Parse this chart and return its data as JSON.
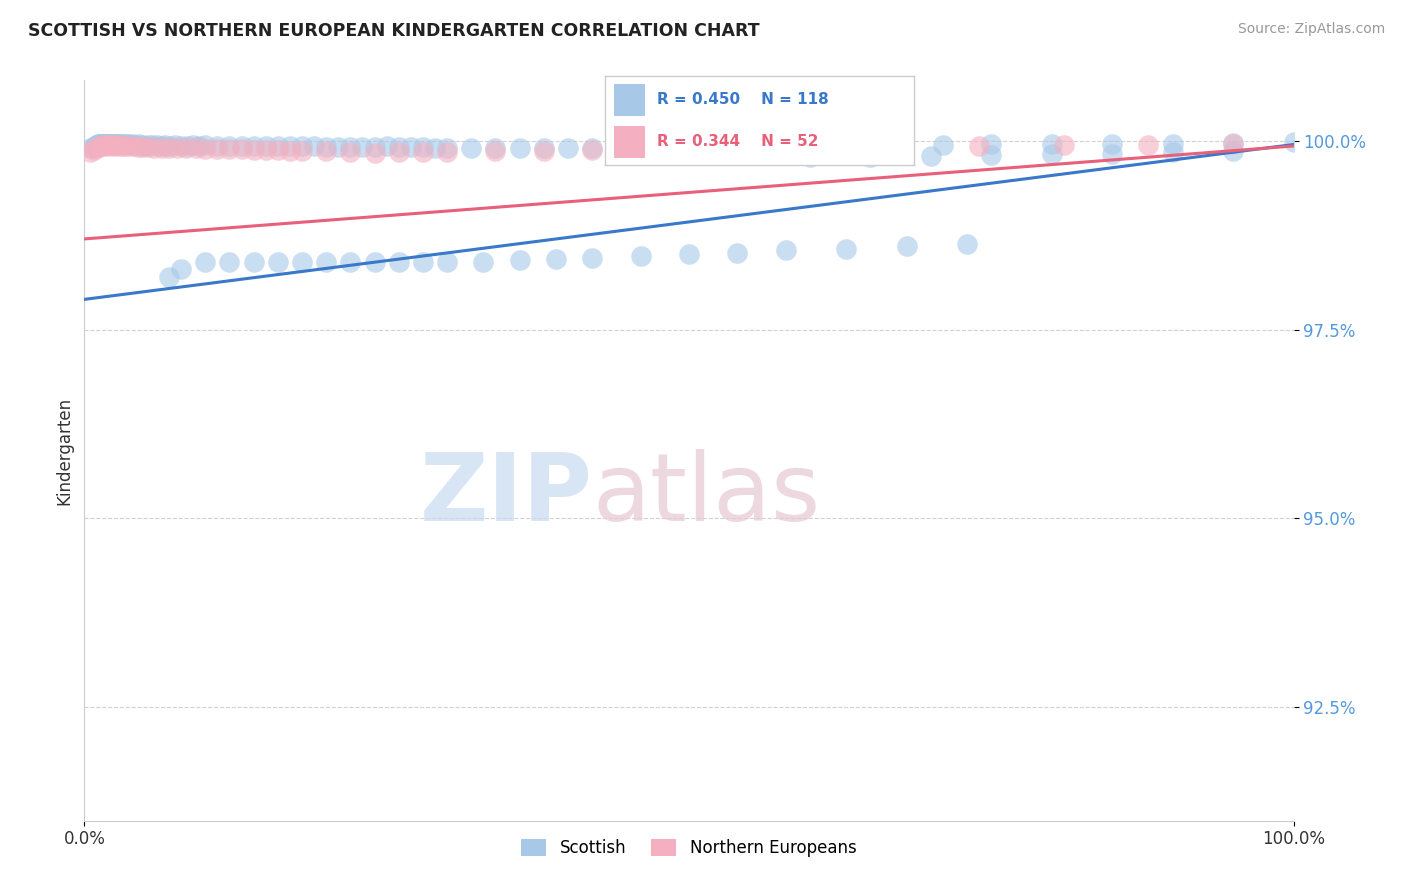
{
  "title": "SCOTTISH VS NORTHERN EUROPEAN KINDERGARTEN CORRELATION CHART",
  "source": "Source: ZipAtlas.com",
  "ylabel": "Kindergarten",
  "xlim": [
    0.0,
    1.0
  ],
  "ylim": [
    0.91,
    1.008
  ],
  "yticks": [
    0.925,
    0.95,
    0.975,
    1.0
  ],
  "ytick_labels": [
    "92.5%",
    "95.0%",
    "97.5%",
    "100.0%"
  ],
  "xticks": [
    0.0,
    1.0
  ],
  "xtick_labels": [
    "0.0%",
    "100.0%"
  ],
  "blue_R": 0.45,
  "blue_N": 118,
  "pink_R": 0.344,
  "pink_N": 52,
  "blue_color": "#a8c8e8",
  "pink_color": "#f4b0c0",
  "blue_line_color": "#3a78c9",
  "pink_line_color": "#e8607a",
  "grid_color": "#cccccc",
  "background_color": "#ffffff",
  "legend_label_blue": "Scottish",
  "legend_label_pink": "Northern Europeans",
  "blue_trend_y0": 0.979,
  "blue_trend_y1": 0.9995,
  "pink_trend_y0": 0.987,
  "pink_trend_y1": 0.9993,
  "blue_x": [
    0.005,
    0.008,
    0.01,
    0.01,
    0.011,
    0.012,
    0.013,
    0.014,
    0.015,
    0.015,
    0.016,
    0.017,
    0.018,
    0.019,
    0.02,
    0.02,
    0.021,
    0.022,
    0.023,
    0.024,
    0.025,
    0.026,
    0.027,
    0.028,
    0.03,
    0.031,
    0.033,
    0.035,
    0.037,
    0.04,
    0.042,
    0.045,
    0.048,
    0.05,
    0.053,
    0.056,
    0.06,
    0.063,
    0.067,
    0.07,
    0.075,
    0.08,
    0.085,
    0.09,
    0.095,
    0.1,
    0.11,
    0.12,
    0.13,
    0.14,
    0.15,
    0.16,
    0.17,
    0.18,
    0.19,
    0.2,
    0.21,
    0.22,
    0.23,
    0.24,
    0.25,
    0.26,
    0.27,
    0.28,
    0.29,
    0.3,
    0.32,
    0.34,
    0.36,
    0.38,
    0.4,
    0.42,
    0.45,
    0.48,
    0.51,
    0.55,
    0.59,
    0.63,
    0.67,
    0.71,
    0.75,
    0.8,
    0.85,
    0.9,
    0.95,
    1.0,
    0.6,
    0.65,
    0.7,
    0.75,
    0.8,
    0.85,
    0.9,
    0.95,
    0.07,
    0.08,
    0.1,
    0.12,
    0.14,
    0.16,
    0.18,
    0.2,
    0.22,
    0.24,
    0.26,
    0.28,
    0.3,
    0.33,
    0.36,
    0.39,
    0.42,
    0.46,
    0.5,
    0.54,
    0.58,
    0.63,
    0.68,
    0.73
  ],
  "blue_y": [
    0.999,
    0.9992,
    0.9994,
    0.9993,
    0.9995,
    0.9996,
    0.9995,
    0.9995,
    0.9995,
    0.9996,
    0.9995,
    0.9996,
    0.9995,
    0.9996,
    0.9995,
    0.9996,
    0.9995,
    0.9996,
    0.9996,
    0.9995,
    0.9995,
    0.9996,
    0.9995,
    0.9996,
    0.9995,
    0.9996,
    0.9995,
    0.9995,
    0.9996,
    0.9995,
    0.9994,
    0.9995,
    0.9994,
    0.9993,
    0.9994,
    0.9994,
    0.9994,
    0.9993,
    0.9994,
    0.9993,
    0.9994,
    0.9993,
    0.9993,
    0.9994,
    0.9993,
    0.9994,
    0.9993,
    0.9993,
    0.9993,
    0.9993,
    0.9993,
    0.9993,
    0.9993,
    0.9993,
    0.9993,
    0.9992,
    0.9992,
    0.9992,
    0.9992,
    0.9992,
    0.9993,
    0.9992,
    0.9992,
    0.9992,
    0.9991,
    0.9991,
    0.9991,
    0.9991,
    0.9991,
    0.9991,
    0.9991,
    0.9991,
    0.9992,
    0.9992,
    0.9992,
    0.9993,
    0.9993,
    0.9993,
    0.9994,
    0.9994,
    0.9995,
    0.9995,
    0.9996,
    0.9996,
    0.9997,
    0.9998,
    0.9978,
    0.9979,
    0.998,
    0.9981,
    0.9982,
    0.9983,
    0.9985,
    0.9987,
    0.982,
    0.983,
    0.984,
    0.984,
    0.984,
    0.984,
    0.984,
    0.984,
    0.984,
    0.984,
    0.984,
    0.984,
    0.984,
    0.984,
    0.9842,
    0.9844,
    0.9845,
    0.9847,
    0.985,
    0.9852,
    0.9855,
    0.9857,
    0.986,
    0.9863
  ],
  "pink_x": [
    0.005,
    0.008,
    0.01,
    0.012,
    0.014,
    0.015,
    0.017,
    0.019,
    0.02,
    0.022,
    0.024,
    0.026,
    0.028,
    0.03,
    0.033,
    0.036,
    0.04,
    0.044,
    0.048,
    0.053,
    0.058,
    0.064,
    0.07,
    0.077,
    0.084,
    0.092,
    0.1,
    0.11,
    0.12,
    0.13,
    0.14,
    0.15,
    0.16,
    0.17,
    0.18,
    0.2,
    0.22,
    0.24,
    0.26,
    0.28,
    0.3,
    0.34,
    0.38,
    0.42,
    0.47,
    0.53,
    0.6,
    0.67,
    0.74,
    0.81,
    0.88,
    0.95
  ],
  "pink_y": [
    0.9985,
    0.9988,
    0.999,
    0.9992,
    0.9993,
    0.9994,
    0.9993,
    0.9994,
    0.9994,
    0.9993,
    0.9994,
    0.9993,
    0.9994,
    0.9993,
    0.9993,
    0.9993,
    0.9993,
    0.9992,
    0.9992,
    0.9992,
    0.9991,
    0.9991,
    0.999,
    0.999,
    0.999,
    0.999,
    0.9989,
    0.9989,
    0.9989,
    0.9989,
    0.9988,
    0.9988,
    0.9988,
    0.9987,
    0.9987,
    0.9986,
    0.9985,
    0.9984,
    0.9985,
    0.9985,
    0.9985,
    0.9986,
    0.9987,
    0.9988,
    0.9988,
    0.9989,
    0.9992,
    0.9992,
    0.9993,
    0.9994,
    0.9994,
    0.9995
  ]
}
